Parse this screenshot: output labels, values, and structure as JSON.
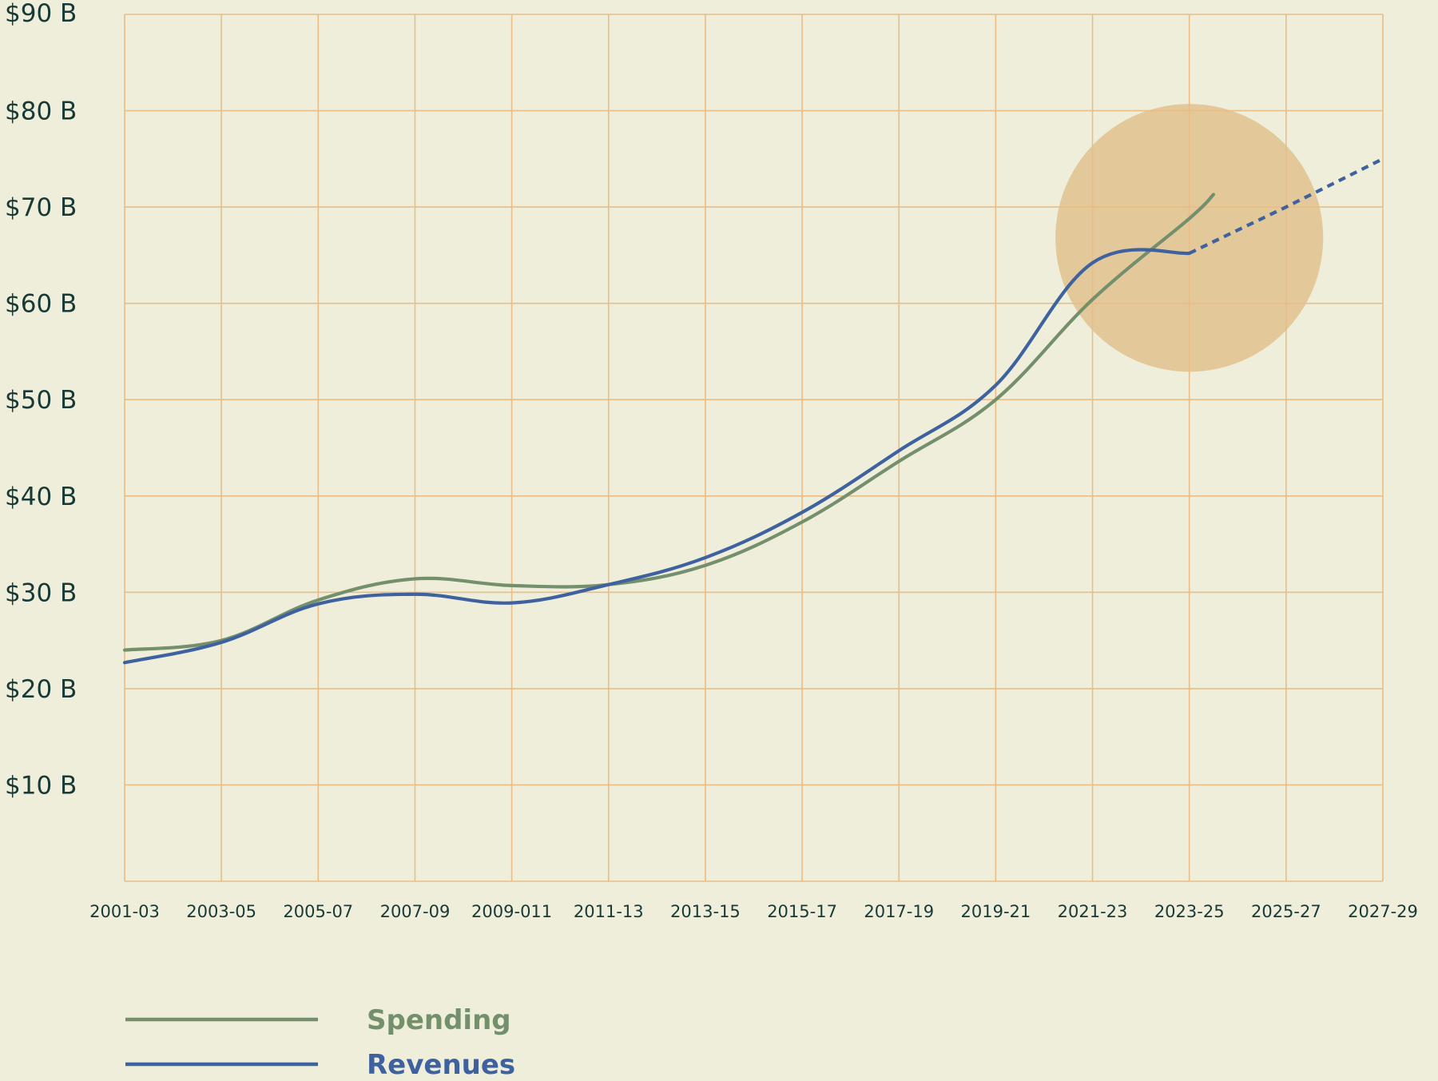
{
  "chart_data": {
    "type": "line",
    "title": "",
    "xlabel": "",
    "ylabel": "",
    "categories": [
      "2001-03",
      "2003-05",
      "2005-07",
      "2007-09",
      "2009-011",
      "2011-13",
      "2013-15",
      "2015-17",
      "2017-19",
      "2019-21",
      "2021-23",
      "2023-25",
      "2025-27",
      "2027-29"
    ],
    "y_tick_labels": [
      "$10 B",
      "$20 B",
      "$30 B",
      "$40 B",
      "$50 B",
      "$60 B",
      "$70 B",
      "$80 B",
      "$90 B"
    ],
    "y_tick_values": [
      10,
      20,
      30,
      40,
      50,
      60,
      70,
      80,
      90
    ],
    "ylim": [
      0,
      90
    ],
    "grid": true,
    "legend_placement": "bottom-left",
    "series": [
      {
        "name": "Spending",
        "color": "#738f6c",
        "points": [
          {
            "x": "2001-03",
            "y": 24.0
          },
          {
            "x": "2003-05",
            "y": 25.0
          },
          {
            "x": "2005-07",
            "y": 29.2
          },
          {
            "x": "2007-09",
            "y": 31.4
          },
          {
            "x": "2009-011",
            "y": 30.7
          },
          {
            "x": "2011-13",
            "y": 30.8
          },
          {
            "x": "2013-15",
            "y": 32.8
          },
          {
            "x": "2015-17",
            "y": 37.3
          },
          {
            "x": "2017-19",
            "y": 43.6
          },
          {
            "x": "2019-21",
            "y": 50.0
          },
          {
            "x": "2021-23",
            "y": 60.4
          },
          {
            "x": "2023-25",
            "y": 68.8
          },
          {
            "x": "2025-27 (partial)",
            "y": 71.3
          }
        ]
      },
      {
        "name": "Revenues",
        "color": "#3e62a0",
        "points": [
          {
            "x": "2001-03",
            "y": 22.7
          },
          {
            "x": "2003-05",
            "y": 24.8
          },
          {
            "x": "2005-07",
            "y": 28.8
          },
          {
            "x": "2007-09",
            "y": 29.8
          },
          {
            "x": "2009-011",
            "y": 28.9
          },
          {
            "x": "2011-13",
            "y": 30.8
          },
          {
            "x": "2013-15",
            "y": 33.6
          },
          {
            "x": "2015-17",
            "y": 38.3
          },
          {
            "x": "2017-19",
            "y": 44.7
          },
          {
            "x": "2019-21",
            "y": 51.5
          },
          {
            "x": "2021-23",
            "y": 64.2
          },
          {
            "x": "2023-25",
            "y": 65.2
          }
        ],
        "projection": {
          "style": "dashed",
          "points": [
            {
              "x": "2023-25",
              "y": 65.2
            },
            {
              "x": "2025-27",
              "y": 70.0
            },
            {
              "x": "2027-29",
              "y": 75.0
            }
          ]
        }
      }
    ],
    "highlight": {
      "shape": "circle",
      "color": "#e3c89a",
      "center_x": "2023-25",
      "center_y": 66.8,
      "radius_in_y_units": 13.9
    },
    "colors": {
      "background": "#efeedb",
      "grid": "#e9bd85",
      "text": "#183a37"
    }
  }
}
